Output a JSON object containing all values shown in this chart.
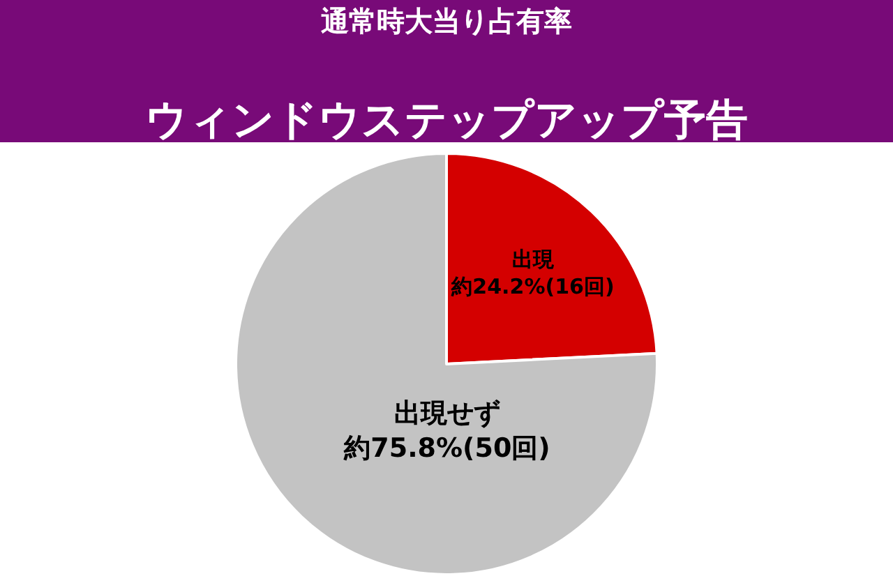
{
  "chart_data": {
    "type": "pie",
    "title": "通常時大当り占有率",
    "subtitle": "ウィンドウステップアップ予告",
    "categories": [
      "出現",
      "出現せず"
    ],
    "values": [
      24.2,
      75.8
    ],
    "value_labels": [
      "約24.2%(16回)",
      "約75.8%(50回)"
    ],
    "colors": [
      "#d40000",
      "#c3c3c3"
    ],
    "legend": false
  }
}
